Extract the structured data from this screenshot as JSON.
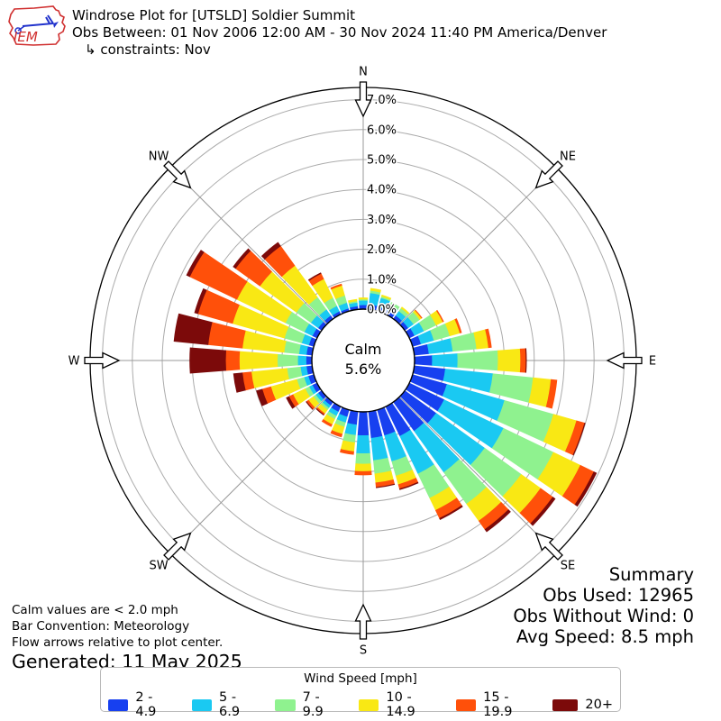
{
  "header": {
    "title": "Windrose Plot for [UTSLD] Soldier Summit",
    "subtitle": "Obs Between: 01 Nov 2006 12:00 AM - 30 Nov 2024 11:40 PM America/Denver",
    "constraint": "↳ constraints: Nov",
    "logo_text": "IEM"
  },
  "notes": {
    "lines": [
      "Calm values are < 2.0 mph",
      "Bar Convention: Meteorology",
      "Flow arrows relative to plot center."
    ],
    "generated": "Generated: 11 May 2025"
  },
  "summary": {
    "title": "Summary",
    "lines": [
      "Obs Used: 12965",
      "Obs Without Wind: 0",
      "Avg Speed: 8.5 mph"
    ]
  },
  "legend": {
    "title": "Wind Speed [mph]",
    "items": [
      {
        "label": "2 - 4.9",
        "color": "#1740f0"
      },
      {
        "label": "5 - 6.9",
        "color": "#1ac9f2"
      },
      {
        "label": "7 - 9.9",
        "color": "#8ff28f"
      },
      {
        "label": "10 - 14.9",
        "color": "#f9e814"
      },
      {
        "label": "15 - 19.9",
        "color": "#ff500a"
      },
      {
        "label": "20+",
        "color": "#7c0a0a"
      }
    ]
  },
  "chart_data": {
    "type": "bar",
    "subtype": "windrose-polar-stacked",
    "title": "Windrose Plot for [UTSLD] Soldier Summit",
    "units": "percent frequency",
    "calm": {
      "label": "Calm",
      "value": "5.6%"
    },
    "compass_labels": [
      "N",
      "NE",
      "E",
      "SE",
      "S",
      "SW",
      "W",
      "NW"
    ],
    "radial_ticks": [
      "0.0%",
      "1.0%",
      "2.0%",
      "3.0%",
      "4.0%",
      "5.0%",
      "6.0%",
      "7.0%"
    ],
    "rmax_percent": 7.0,
    "grid": true,
    "legend_position": "bottom",
    "directions_deg": [
      0,
      10,
      20,
      30,
      40,
      50,
      60,
      70,
      80,
      90,
      100,
      110,
      120,
      130,
      140,
      150,
      160,
      170,
      180,
      190,
      200,
      210,
      220,
      230,
      240,
      250,
      260,
      270,
      280,
      290,
      300,
      310,
      320,
      330,
      340,
      350
    ],
    "series": [
      {
        "name": "2 - 4.9",
        "color": "#1740f0",
        "values": [
          0.15,
          0.18,
          0.15,
          0.15,
          0.15,
          0.15,
          0.2,
          0.3,
          0.5,
          0.6,
          1.05,
          1.2,
          1.3,
          1.3,
          1.2,
          1.1,
          0.9,
          0.9,
          0.8,
          0.45,
          0.25,
          0.2,
          0.15,
          0.15,
          0.18,
          0.2,
          0.2,
          0.2,
          0.2,
          0.18,
          0.18,
          0.15,
          0.15,
          0.12,
          0.1,
          0.12
        ]
      },
      {
        "name": "5 - 6.9",
        "color": "#1ac9f2",
        "values": [
          0.15,
          0.38,
          0.32,
          0.2,
          0.18,
          0.22,
          0.35,
          0.45,
          0.8,
          0.85,
          1.6,
          2.0,
          2.2,
          2.0,
          1.7,
          1.4,
          0.9,
          0.75,
          0.6,
          0.35,
          0.2,
          0.15,
          0.1,
          0.1,
          0.12,
          0.15,
          0.2,
          0.28,
          0.25,
          0.25,
          0.3,
          0.3,
          0.25,
          0.2,
          0.2,
          0.12
        ]
      },
      {
        "name": "7 - 9.9",
        "color": "#8ff28f",
        "values": [
          0.04,
          0.08,
          0.05,
          0.1,
          0.12,
          0.25,
          0.45,
          0.55,
          0.8,
          1.35,
          1.35,
          1.7,
          1.85,
          1.5,
          1.3,
          0.9,
          0.5,
          0.45,
          0.35,
          0.25,
          0.15,
          0.12,
          0.08,
          0.1,
          0.15,
          0.25,
          0.45,
          0.68,
          0.5,
          0.6,
          0.7,
          0.6,
          0.5,
          0.3,
          0.25,
          0.05
        ]
      },
      {
        "name": "10 - 14.9",
        "color": "#f9e814",
        "values": [
          0.05,
          0.08,
          0.05,
          0.0,
          0.05,
          0.08,
          0.25,
          0.35,
          0.4,
          0.75,
          0.6,
          0.8,
          1.0,
          0.8,
          0.7,
          0.45,
          0.3,
          0.3,
          0.25,
          0.3,
          0.25,
          0.2,
          0.15,
          0.2,
          0.45,
          0.9,
          1.2,
          1.27,
          1.4,
          1.8,
          1.8,
          1.5,
          1.3,
          0.7,
          0.35,
          0.06
        ]
      },
      {
        "name": "15 - 19.9",
        "color": "#ff500a",
        "values": [
          0.0,
          0.0,
          0.0,
          0.0,
          0.0,
          0.02,
          0.03,
          0.06,
          0.1,
          0.18,
          0.2,
          0.28,
          0.5,
          0.5,
          0.35,
          0.3,
          0.15,
          0.15,
          0.12,
          0.1,
          0.1,
          0.08,
          0.05,
          0.08,
          0.15,
          0.3,
          0.3,
          0.46,
          1.15,
          1.2,
          1.75,
          1.0,
          0.81,
          0.2,
          0.05,
          0.0
        ]
      },
      {
        "name": "20+",
        "color": "#7c0a0a",
        "values": [
          0.0,
          0.0,
          0.0,
          0.0,
          0.0,
          0.0,
          0.0,
          0.0,
          0.0,
          0.02,
          0.0,
          0.02,
          0.1,
          0.1,
          0.1,
          0.05,
          0.03,
          0.02,
          0.0,
          0.0,
          0.0,
          0.0,
          0.02,
          0.02,
          0.1,
          0.2,
          0.3,
          1.2,
          1.15,
          0.12,
          0.12,
          0.1,
          0.15,
          0.03,
          0.0,
          0.0
        ]
      }
    ]
  }
}
